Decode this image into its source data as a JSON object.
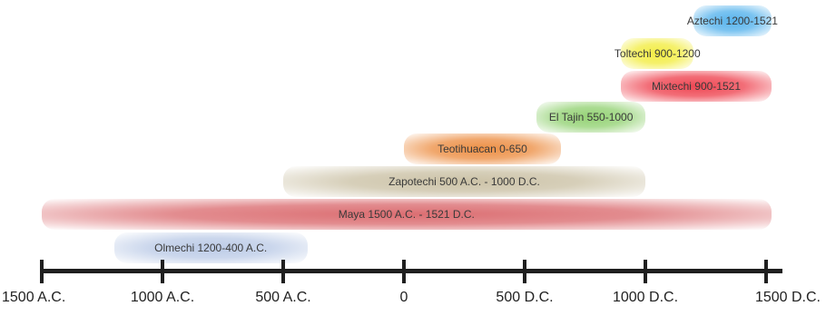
{
  "timeline": {
    "axis_ticks": [
      {
        "year": -1500,
        "label": "1500 A.C."
      },
      {
        "year": -1000,
        "label": "1000 A.C."
      },
      {
        "year": -500,
        "label": "500 A.C."
      },
      {
        "year": 0,
        "label": "0"
      },
      {
        "year": 500,
        "label": "500 D.C."
      },
      {
        "year": 1000,
        "label": "1000 D.C."
      },
      {
        "year": 1500,
        "label": "1500 D.C."
      }
    ],
    "civilizations": [
      {
        "label": "Olmechi 1200-400 A.C.",
        "start": -1200,
        "end": -400,
        "color": "#b9c9e6"
      },
      {
        "label": "Maya 1500 A.C. - 1521 D.C.",
        "start": -1500,
        "end": 1521,
        "color": "#d9666a"
      },
      {
        "label": "Zapotechi 500 A.C. - 1000 D.C.",
        "start": -500,
        "end": 1000,
        "color": "#c9bfa2"
      },
      {
        "label": "Teotihuacan 0-650",
        "start": 0,
        "end": 650,
        "color": "#ec8a3c"
      },
      {
        "label": "El Tajin 550-1000",
        "start": 550,
        "end": 1000,
        "color": "#8fd06e"
      },
      {
        "label": "Mixtechi 900-1521",
        "start": 900,
        "end": 1521,
        "color": "#ee3d4a"
      },
      {
        "label": "Toltechi 900-1200",
        "start": 900,
        "end": 1200,
        "color": "#f2ec3a"
      },
      {
        "label": "Aztechi 1200-1521",
        "start": 1200,
        "end": 1521,
        "color": "#4fb0ec"
      }
    ]
  }
}
